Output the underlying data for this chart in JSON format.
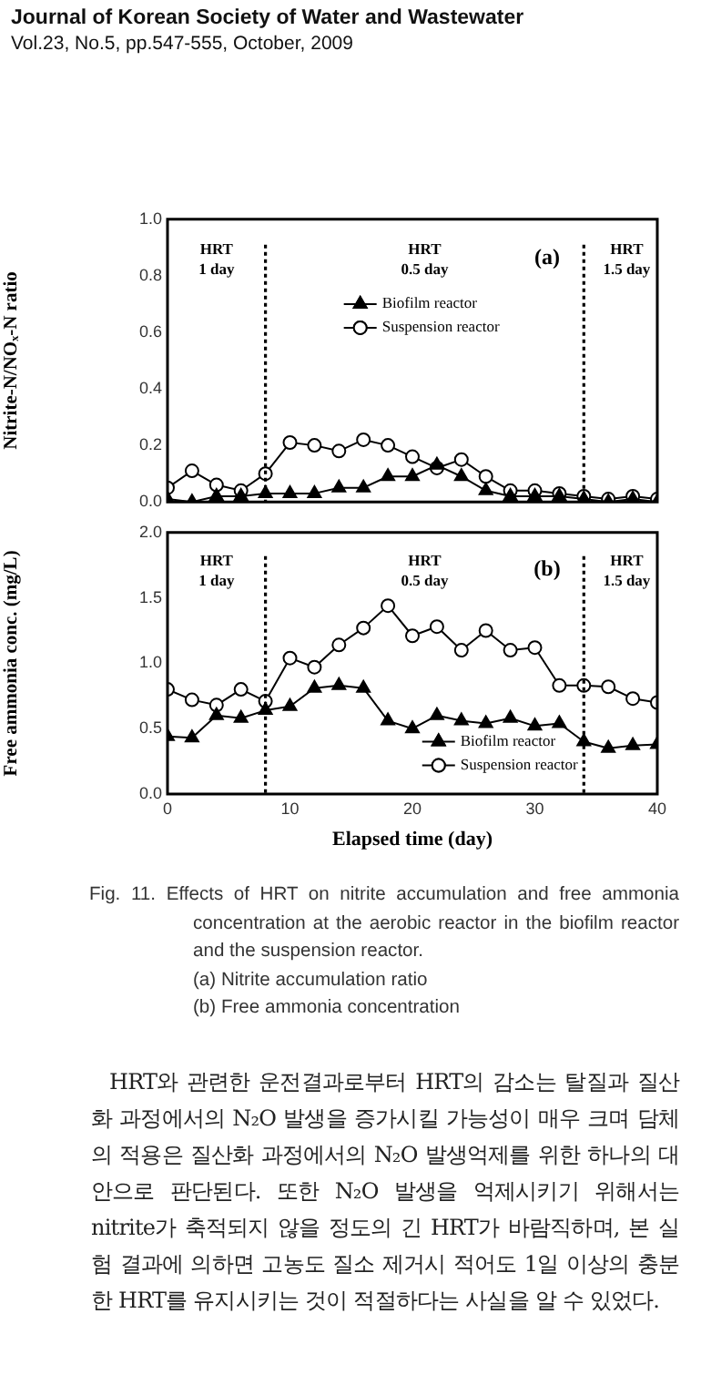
{
  "chart_data": [
    {
      "type": "line",
      "ylabel": "Nitrite-N/NOₓ-N ratio",
      "x": [
        0,
        2,
        4,
        6,
        8,
        10,
        12,
        14,
        16,
        18,
        20,
        22,
        24,
        26,
        28,
        30,
        32,
        34,
        36,
        38,
        40
      ],
      "xlim": [
        0,
        40
      ],
      "xticks": [
        0,
        10,
        20,
        30,
        40
      ],
      "ylim": [
        0,
        1
      ],
      "yticks": [
        {
          "value": 0,
          "label": "0.0"
        },
        {
          "value": 0.2,
          "label": "0.2"
        },
        {
          "value": 0.4,
          "label": "0.4"
        },
        {
          "value": 0.6,
          "label": "0.6"
        },
        {
          "value": 0.8,
          "label": "0.8"
        },
        {
          "value": 1,
          "label": "1.0"
        }
      ],
      "tick_labels": "y",
      "grid": false,
      "legend": "center",
      "series": [
        {
          "name": "Biofilm reactor",
          "color": "#000000",
          "marker": "triangle",
          "values": [
            0.01,
            0.0,
            0.02,
            0.02,
            0.03,
            0.03,
            0.03,
            0.05,
            0.05,
            0.09,
            0.09,
            0.13,
            0.09,
            0.04,
            0.02,
            0.02,
            0.02,
            0.01,
            0.0,
            0.01,
            0.0
          ]
        },
        {
          "name": "Suspension reactor",
          "color": "#000000",
          "marker": "circle",
          "values": [
            0.05,
            0.11,
            0.06,
            0.04,
            0.1,
            0.21,
            0.2,
            0.18,
            0.22,
            0.2,
            0.16,
            0.12,
            0.15,
            0.09,
            0.04,
            0.04,
            0.03,
            0.02,
            0.01,
            0.02,
            0.01
          ]
        }
      ],
      "ref_lines": [
        {
          "axis": "x",
          "value": 8,
          "line_style": "dotted"
        },
        {
          "axis": "x",
          "value": 34,
          "line_style": "dotted"
        }
      ],
      "annotations": [
        "Journal of Korean Society of Water and Wastewater",
        "Vol.23, No.5, pp.547-555, October, 2009",
        "HRT\n1 day",
        "HRT\n0.5 day",
        "HRT\n1.5 day",
        "(a)"
      ]
    },
    {
      "type": "line",
      "ylabel": "Free ammonia conc. (mg/L)",
      "xlabel": "Elapsed time (day)",
      "x": [
        0,
        2,
        4,
        6,
        8,
        10,
        12,
        14,
        16,
        18,
        20,
        22,
        24,
        26,
        28,
        30,
        32,
        34,
        36,
        38,
        40
      ],
      "xlim": [
        0,
        40
      ],
      "xticks": [
        0,
        10,
        20,
        30,
        40
      ],
      "ylim": [
        0,
        2
      ],
      "yticks": [
        {
          "value": 0,
          "label": "0.0"
        },
        {
          "value": 0.5,
          "label": "0.5"
        },
        {
          "value": 1,
          "label": "1.0"
        },
        {
          "value": 1.5,
          "label": "1.5"
        },
        {
          "value": 2,
          "label": "2.0"
        }
      ],
      "grid": false,
      "legend": "bottom",
      "series": [
        {
          "name": "Biofilm reactor",
          "color": "#000000",
          "marker": "triangle",
          "values": [
            0.44,
            0.43,
            0.6,
            0.58,
            0.64,
            0.67,
            0.81,
            0.83,
            0.81,
            0.56,
            0.5,
            0.6,
            0.56,
            0.54,
            0.58,
            0.52,
            0.54,
            0.4,
            0.35,
            0.37,
            0.38
          ]
        },
        {
          "name": "Suspension reactor",
          "color": "#000000",
          "marker": "circle",
          "values": [
            0.8,
            0.72,
            0.68,
            0.8,
            0.71,
            1.04,
            0.97,
            1.14,
            1.27,
            1.44,
            1.21,
            1.28,
            1.1,
            1.25,
            1.1,
            1.12,
            0.83,
            0.83,
            0.82,
            0.73,
            0.7
          ]
        }
      ],
      "ref_lines": [
        {
          "axis": "x",
          "value": 8,
          "line_style": "dotted"
        },
        {
          "axis": "x",
          "value": 34,
          "line_style": "dotted"
        }
      ],
      "annotations": [
        "HRT\n1 day",
        "HRT\n0.5 day",
        "HRT\n1.5 day",
        "(b)",
        "Fig. 11. Effects of HRT on nitrite accumulation and free ammonia concentration at the aerobic reactor in the biofilm reactor and the suspension reactor.",
        "(a) Nitrite accumulation ratio",
        "(b) Free ammonia concentration",
        "HRT와 관련한 운전결과로부터 HRT의 감소는 탈질과 질산화 과정에서의 N₂O 발생을 증가시킬 가능성이 매우 크며 담체의 적용은 질산화 과정에서의 N₂O 발생억제를 위한 하나의 대안으로 판단된다. 또한 N₂O 발생을 억제시키기 위해서는 nitrite가 축적되지 않을 정도의 긴 HRT가 바람직하며, 본 실험 결과에 의하면 고농도 질소 제거시 적어도 1일 이상의 충분한 HRT를 유지시키는 것이 적절하다는 사실을 알 수 있었다."
      ]
    }
  ]
}
